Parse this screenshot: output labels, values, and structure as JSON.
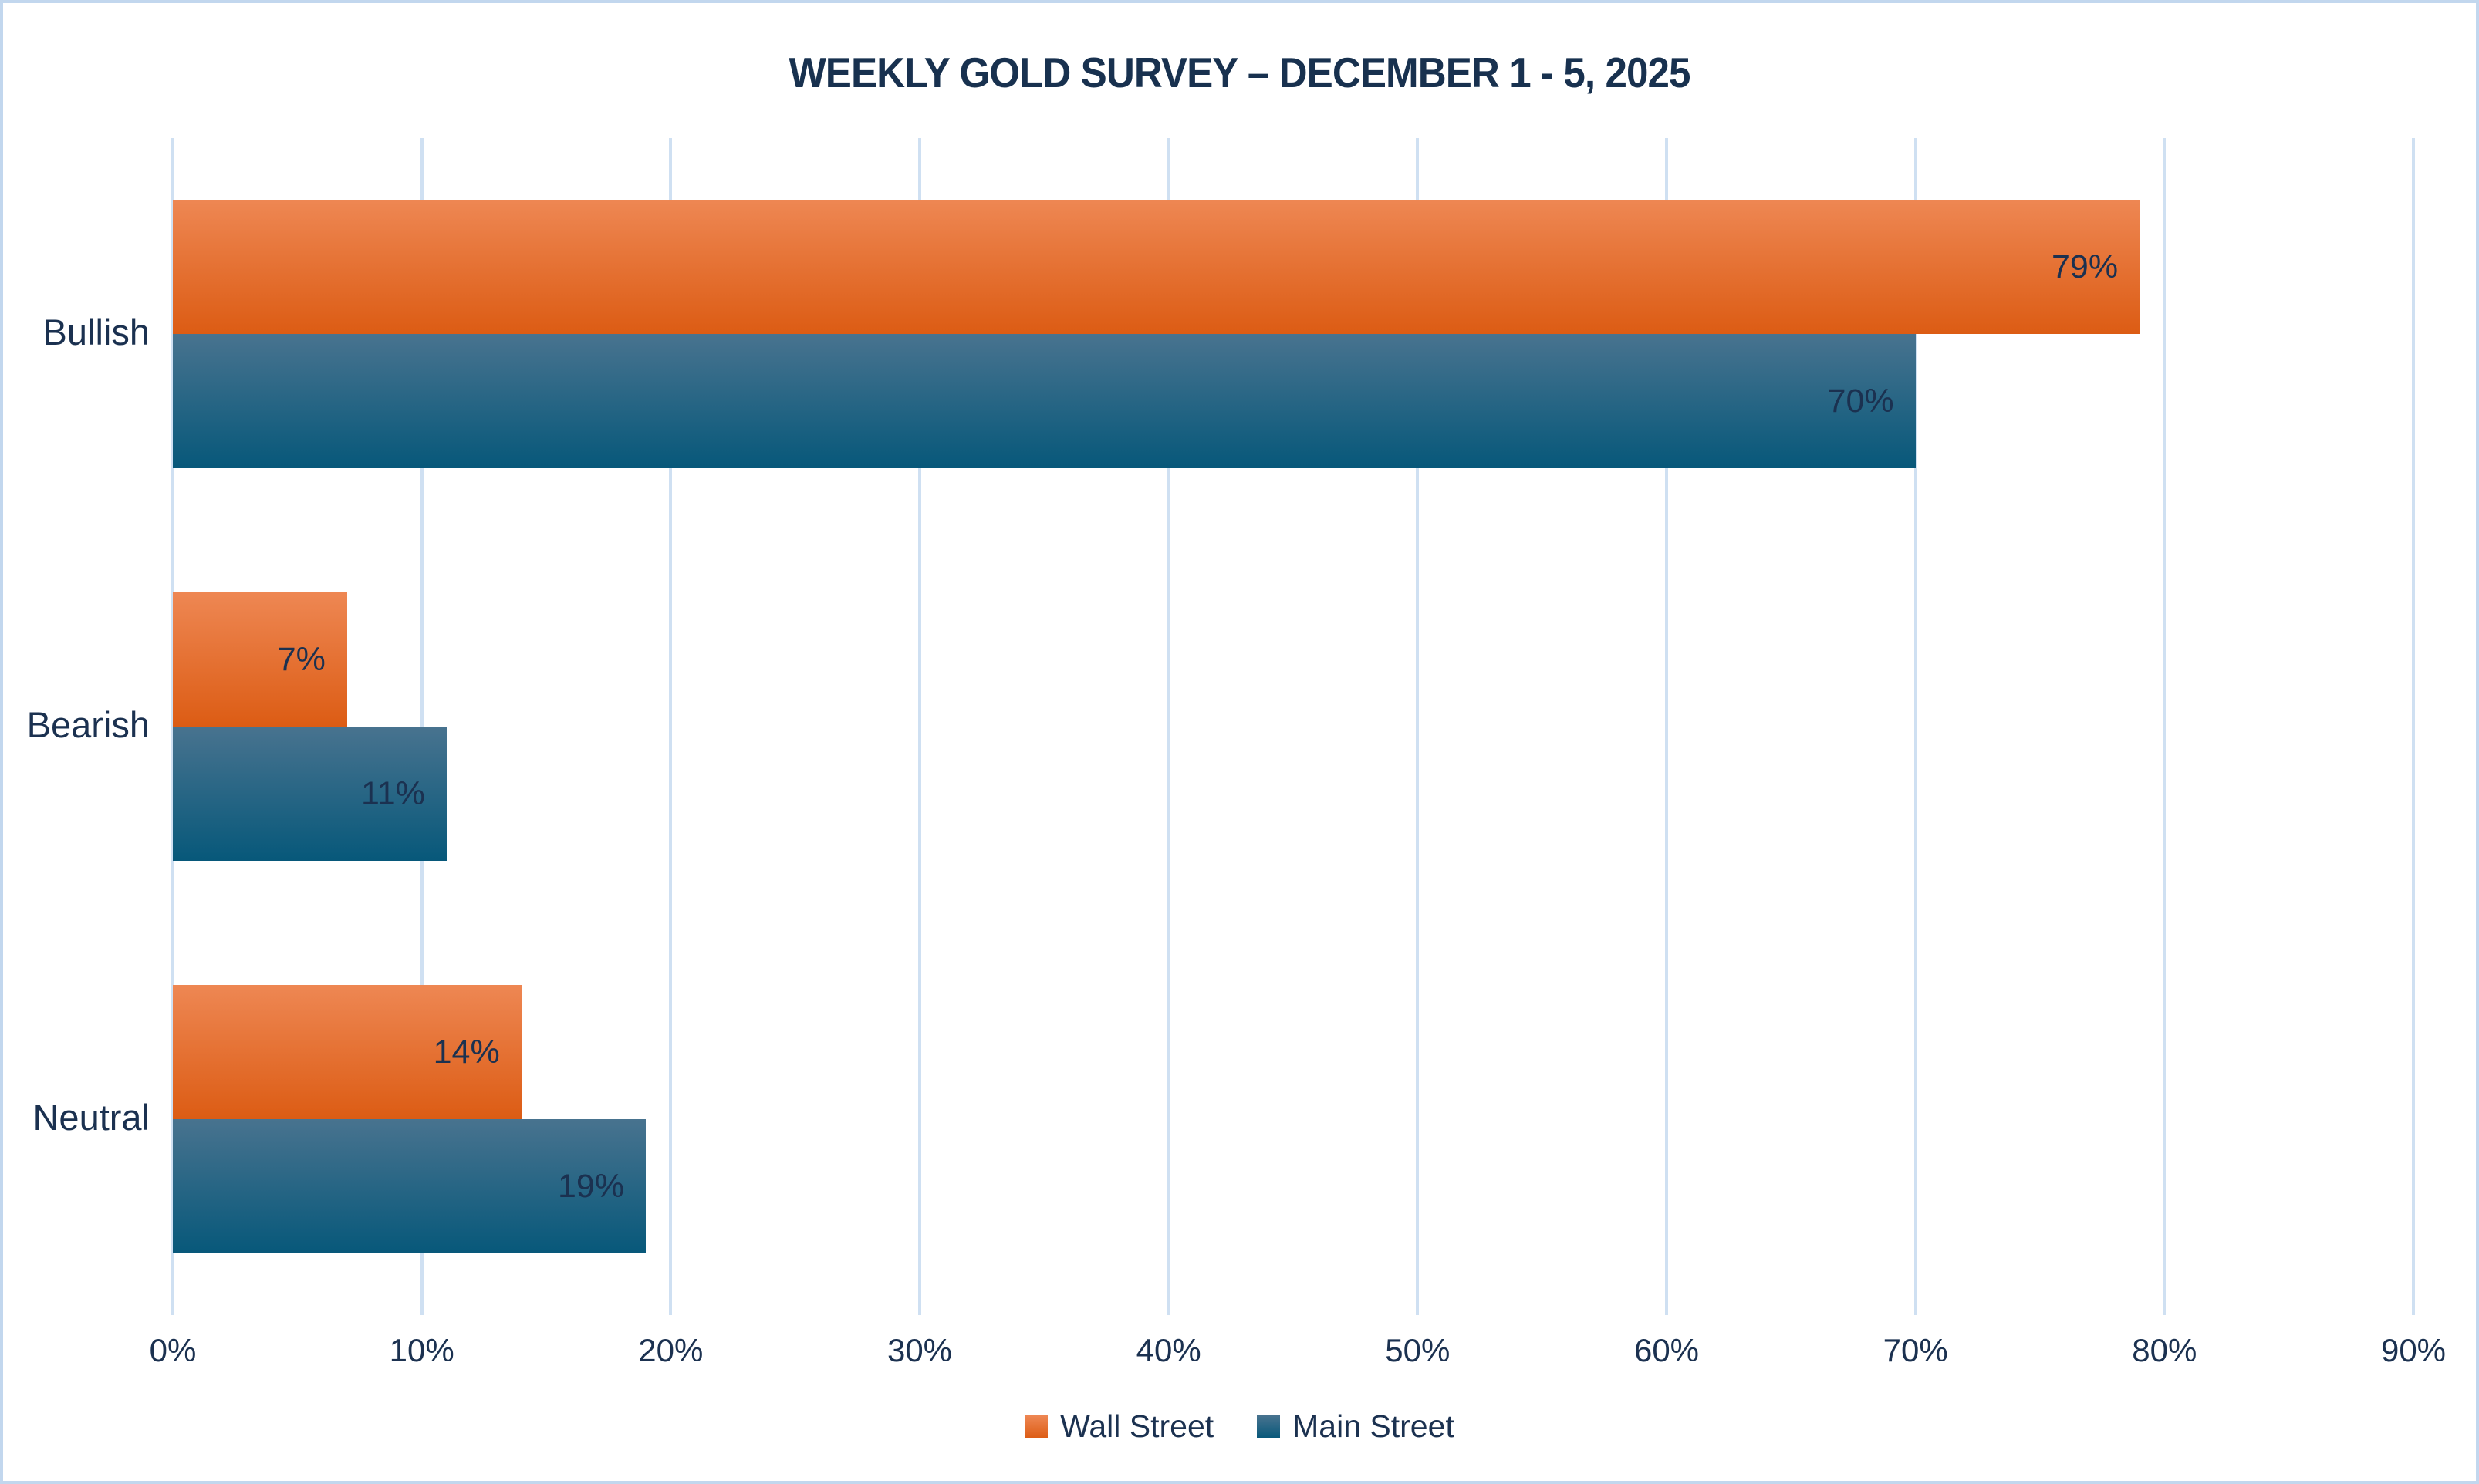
{
  "chart": {
    "title": "WEEKLY GOLD SURVEY – DECEMBER 1 - 5, 2025"
  },
  "chart_data": {
    "type": "bar",
    "orientation": "horizontal",
    "title": "WEEKLY GOLD SURVEY – DECEMBER 1 - 5, 2025",
    "categories": [
      "Bullish",
      "Bearish",
      "Neutral"
    ],
    "series": [
      {
        "name": "Wall Street",
        "values": [
          79,
          7,
          14
        ],
        "labels": [
          "79%",
          "7%",
          "14%"
        ],
        "color_top": "#ee8753",
        "color_bottom": "#dc5c14"
      },
      {
        "name": "Main Street",
        "values": [
          70,
          11,
          19
        ],
        "labels": [
          "70%",
          "11%",
          "19%"
        ],
        "color_top": "#48738f",
        "color_bottom": "#07587a"
      }
    ],
    "value_suffix": "%",
    "xlim": [
      0,
      90
    ],
    "x_tick_values": [
      0,
      10,
      20,
      30,
      40,
      50,
      60,
      70,
      80,
      90
    ],
    "x_tick_labels": [
      "0%",
      "10%",
      "20%",
      "30%",
      "40%",
      "50%",
      "60%",
      "70%",
      "80%",
      "90%"
    ],
    "grid": true,
    "legend_position": "bottom"
  },
  "colors": {
    "text": "#1b3150",
    "title_text": "#18314f",
    "gridline": "#cfe0f2",
    "frame_border": "#c2d7ee",
    "background": "#ffffff",
    "wall_street_accent": "#e2661f",
    "main_street_accent": "#15607f"
  }
}
